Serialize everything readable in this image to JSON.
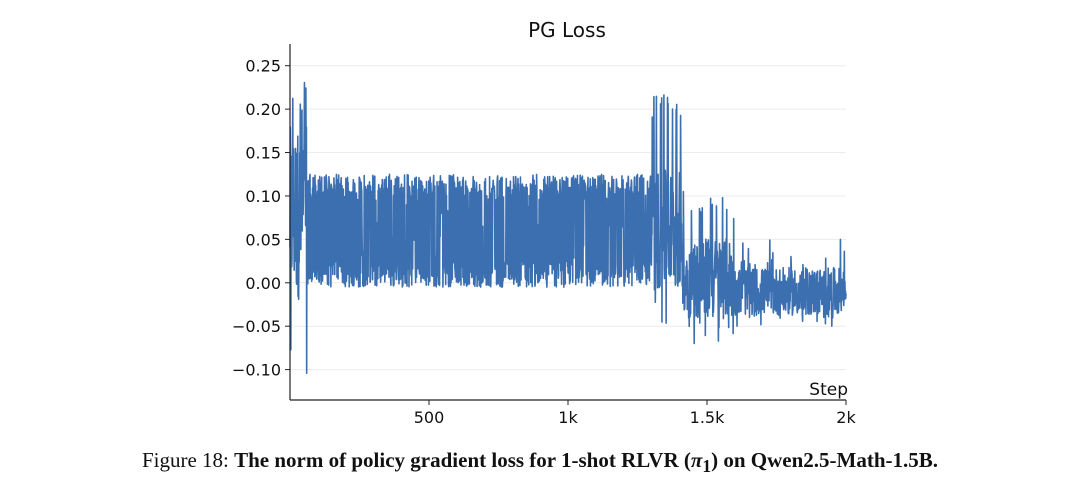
{
  "chart_data": {
    "type": "line",
    "title": "PG Loss",
    "xlabel": "Step",
    "ylabel": "",
    "xlim": [
      0,
      2000
    ],
    "ylim": [
      -0.135,
      0.275
    ],
    "x_ticks": [
      500,
      1000,
      1500,
      2000
    ],
    "x_tick_labels": [
      "500",
      "1k",
      "1.5k",
      "2k"
    ],
    "y_ticks": [
      0.25,
      0.2,
      0.15,
      0.1,
      0.05,
      0.0,
      -0.05,
      -0.1
    ],
    "y_tick_labels": [
      "0.25",
      "0.20",
      "0.15",
      "0.10",
      "0.05",
      "0.00",
      "−0.05",
      "−0.10"
    ],
    "grid": true,
    "color": "#3b6fb0",
    "series": [
      {
        "x_range": [
          0,
          2000
        ],
        "phases": [
          {
            "x": [
              0,
              60
            ],
            "low": -0.13,
            "high": 0.25,
            "note": "initial spikes up to 0.25 and down to about -0.13"
          },
          {
            "x": [
              60,
              1300
            ],
            "low": -0.005,
            "high": 0.125
          },
          {
            "x": [
              1300,
              1420
            ],
            "low": -0.05,
            "high": 0.22
          },
          {
            "x": [
              1420,
              1600
            ],
            "low": -0.07,
            "high": 0.1
          },
          {
            "x": [
              1600,
              2000
            ],
            "low": -0.05,
            "high": 0.05
          }
        ]
      }
    ]
  },
  "caption": {
    "prefix": "Figure 18: ",
    "bold_text": "The norm of policy gradient loss for 1-shot RLVR (",
    "pi_symbol": "π",
    "pi_subscript": "1",
    "bold_text_end": ") on Qwen2.5-Math-1.5B."
  }
}
